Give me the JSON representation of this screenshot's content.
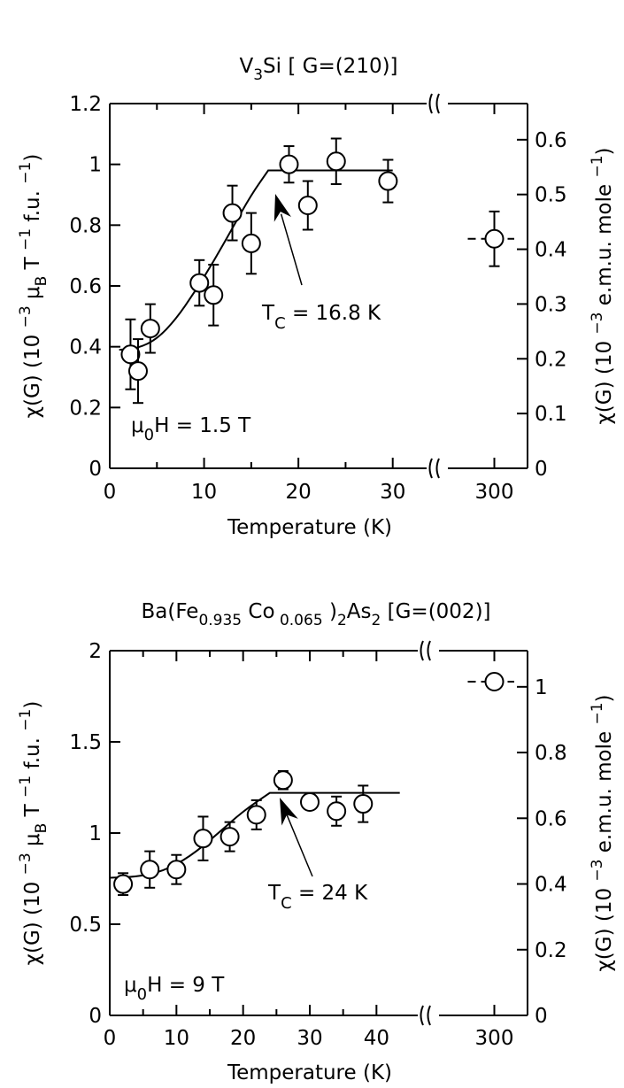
{
  "chart_data": [
    {
      "type": "scatter",
      "title": "V3Si  [ G=(210)]",
      "title_parts": {
        "base": "V",
        "sub": "3",
        "rest": "Si  [ G=(210)]"
      },
      "xlabel": "Temperature (K)",
      "ylabel_left": "χ(G) (10 −3 μB T −1 f.u. −1)",
      "ylabel_right": "χ(G) (10 −3 e.m.u. mole −1)",
      "xlim": [
        0,
        35
      ],
      "xlim_broken": [
        295,
        305
      ],
      "ylim": [
        0,
        1.2
      ],
      "ylim_right": [
        0,
        0.666
      ],
      "x_ticks": [
        "0",
        "10",
        "20",
        "30"
      ],
      "x_ticks_broken": [
        "300"
      ],
      "y_ticks": [
        "0",
        "0.2",
        "0.4",
        "0.6",
        "0.8",
        "1",
        "1.2"
      ],
      "y_ticks_right": [
        "0",
        "0.1",
        "0.2",
        "0.3",
        "0.4",
        "0.5",
        "0.6"
      ],
      "points": [
        {
          "x": 2.2,
          "y": 0.375,
          "err": 0.115
        },
        {
          "x": 3.0,
          "y": 0.32,
          "err": 0.105
        },
        {
          "x": 4.3,
          "y": 0.46,
          "err": 0.08
        },
        {
          "x": 9.5,
          "y": 0.61,
          "err": 0.075
        },
        {
          "x": 11.0,
          "y": 0.57,
          "err": 0.1
        },
        {
          "x": 13.0,
          "y": 0.84,
          "err": 0.09
        },
        {
          "x": 15.0,
          "y": 0.74,
          "err": 0.1
        },
        {
          "x": 19.0,
          "y": 1.0,
          "err": 0.06
        },
        {
          "x": 21.0,
          "y": 0.865,
          "err": 0.08
        },
        {
          "x": 24.0,
          "y": 1.01,
          "err": 0.075
        },
        {
          "x": 29.5,
          "y": 0.945,
          "err": 0.07
        }
      ],
      "points_broken": [
        {
          "x": 300,
          "y": 0.755,
          "err": 0.09
        }
      ],
      "fit_curve": {
        "x": [
          1.0,
          3.0,
          5.0,
          7.0,
          9.0,
          11.0,
          13.0,
          15.0,
          16.8,
          30.0
        ],
        "y": [
          0.39,
          0.395,
          0.425,
          0.49,
          0.58,
          0.68,
          0.79,
          0.9,
          0.98,
          0.98
        ]
      },
      "dashed_level": {
        "y": 0.755,
        "x_range": [
          296,
          303
        ]
      },
      "annotations": {
        "tc_base": "T",
        "tc_sub": "C",
        "tc_value": " = 16.8 K",
        "tc_x": 16.8,
        "field_mu": "μ",
        "field_sub": "0",
        "field_rest": "H = 1.5 T"
      }
    },
    {
      "type": "scatter",
      "title": "Ba(Fe0.935 Co 0.065 )2As2    [G=(002)]",
      "title_parts": {
        "p1": "Ba(Fe",
        "s1": "0.935",
        "p2": " Co",
        "s2": " 0.065",
        "p3": " )",
        "s3": "2",
        "p4": "As",
        "s4": "2",
        "p5": "    [G=(002)]"
      },
      "xlabel": "Temperature (K)",
      "ylabel_left": "χ(G) (10 −3 μB T −1 f.u. −1)",
      "ylabel_right": "χ(G) (10 −3 e.m.u. mole −1)",
      "xlim": [
        0,
        45
      ],
      "xlim_broken": [
        295,
        305
      ],
      "ylim": [
        0,
        2
      ],
      "ylim_right": [
        0,
        1.11
      ],
      "x_ticks": [
        "0",
        "10",
        "20",
        "30",
        "40"
      ],
      "x_ticks_broken": [
        "300"
      ],
      "y_ticks": [
        "0",
        "0.5",
        "1",
        "1.5",
        "2"
      ],
      "y_ticks_right": [
        "0",
        "0.2",
        "0.4",
        "0.6",
        "0.8",
        "1"
      ],
      "points": [
        {
          "x": 2.0,
          "y": 0.72,
          "err": 0.06
        },
        {
          "x": 6.0,
          "y": 0.8,
          "err": 0.1
        },
        {
          "x": 10.0,
          "y": 0.8,
          "err": 0.08
        },
        {
          "x": 14.0,
          "y": 0.97,
          "err": 0.12
        },
        {
          "x": 18.0,
          "y": 0.98,
          "err": 0.08
        },
        {
          "x": 22.0,
          "y": 1.1,
          "err": 0.08
        },
        {
          "x": 26.0,
          "y": 1.29,
          "err": 0.05
        },
        {
          "x": 30.0,
          "y": 1.17,
          "err": 0.03
        },
        {
          "x": 34.0,
          "y": 1.12,
          "err": 0.08
        },
        {
          "x": 38.0,
          "y": 1.16,
          "err": 0.1
        }
      ],
      "points_broken": [
        {
          "x": 300,
          "y": 1.83,
          "err": 0.04
        }
      ],
      "fit_curve": {
        "x": [
          0,
          4,
          8,
          12,
          16,
          20,
          24,
          43.5
        ],
        "y": [
          0.755,
          0.76,
          0.79,
          0.87,
          0.99,
          1.12,
          1.22,
          1.22
        ]
      },
      "dashed_level": {
        "y": 1.83,
        "x_range": [
          296,
          303
        ]
      },
      "annotations": {
        "tc_base": "T",
        "tc_sub": "C",
        "tc_value": " = 24 K",
        "tc_x": 24,
        "field_mu": "μ",
        "field_sub": "0",
        "field_rest": "H = 9 T"
      }
    }
  ]
}
